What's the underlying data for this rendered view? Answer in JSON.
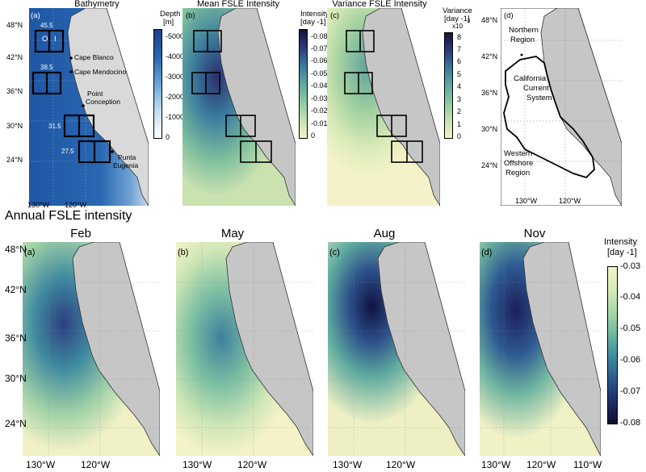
{
  "top": {
    "bathymetry": {
      "title": "Bathymetry",
      "letter": "(a)",
      "cb_title": "Depth",
      "cb_unit": "[m]",
      "cb_ticks": [
        "-5000",
        "-4000",
        "-3000",
        "-2000",
        "-1000",
        "0"
      ],
      "box_labels": [
        "45.5",
        "38.5",
        "31.5",
        "27.5"
      ],
      "box_letters": {
        "o": "O",
        "i": "I"
      },
      "places": [
        "Cape Blanco",
        "Cape Mendocino",
        "Point",
        "Conception",
        "Punta",
        "Eugenia"
      ],
      "lat_ticks": [
        "48°N",
        "42°N",
        "36°N",
        "30°N",
        "24°N"
      ],
      "lon_ticks": [
        "130°W",
        "120°W"
      ]
    },
    "mean": {
      "title": "Mean FSLE Intensity",
      "letter": "(b)",
      "cb_title": "Intensity",
      "cb_unit": "[day -1]",
      "cb_ticks": [
        "-0.08",
        "-0.07",
        "-0.06",
        "-0.05",
        "-0.04",
        "-0.03",
        "-0.02",
        "-0.01",
        "0"
      ]
    },
    "variance": {
      "title": "Variance FSLE Intensity",
      "letter": "(c)",
      "cb_title": "Variance",
      "cb_unit": "[day -1]",
      "cb_exp": "x10",
      "cb_exp_power": "-3",
      "cb_ticks": [
        "8",
        "7",
        "6",
        "5",
        "4",
        "3",
        "2",
        "1",
        "0"
      ]
    },
    "regions": {
      "letter": "(d)",
      "lat_ticks": [
        "48°N",
        "42°N",
        "36°N",
        "30°N",
        "24°N"
      ],
      "lon_ticks": [
        "130°W",
        "120°W"
      ],
      "labels": [
        "Northern",
        "Region",
        "California",
        "Current",
        "System",
        "Western",
        "Offshore",
        "Region"
      ]
    }
  },
  "section_title": "Annual FSLE intensity",
  "bottom": {
    "panels": [
      {
        "title": "Feb",
        "letter": "(a)"
      },
      {
        "title": "May",
        "letter": "(b)"
      },
      {
        "title": "Aug",
        "letter": "(c)"
      },
      {
        "title": "Nov",
        "letter": "(d)"
      }
    ],
    "lat_ticks": [
      "48°N",
      "42°N",
      "36°N",
      "30°N",
      "24°N"
    ],
    "lon_ticks_a": [
      "130°W",
      "120°W"
    ],
    "lon_ticks_d": [
      "130°W",
      "120°W",
      "110°W"
    ],
    "cb_title": "Intensity",
    "cb_unit": "[day -1]",
    "cb_ticks": [
      "-0.03",
      "-0.04",
      "-0.05",
      "-0.06",
      "-0.07",
      "-0.08"
    ]
  },
  "colors": {
    "land": "#c6c6c6",
    "ocean_light": "#f3f2c8",
    "ocean_dark": "#101238",
    "bathy_deep": "#1a4a98"
  }
}
